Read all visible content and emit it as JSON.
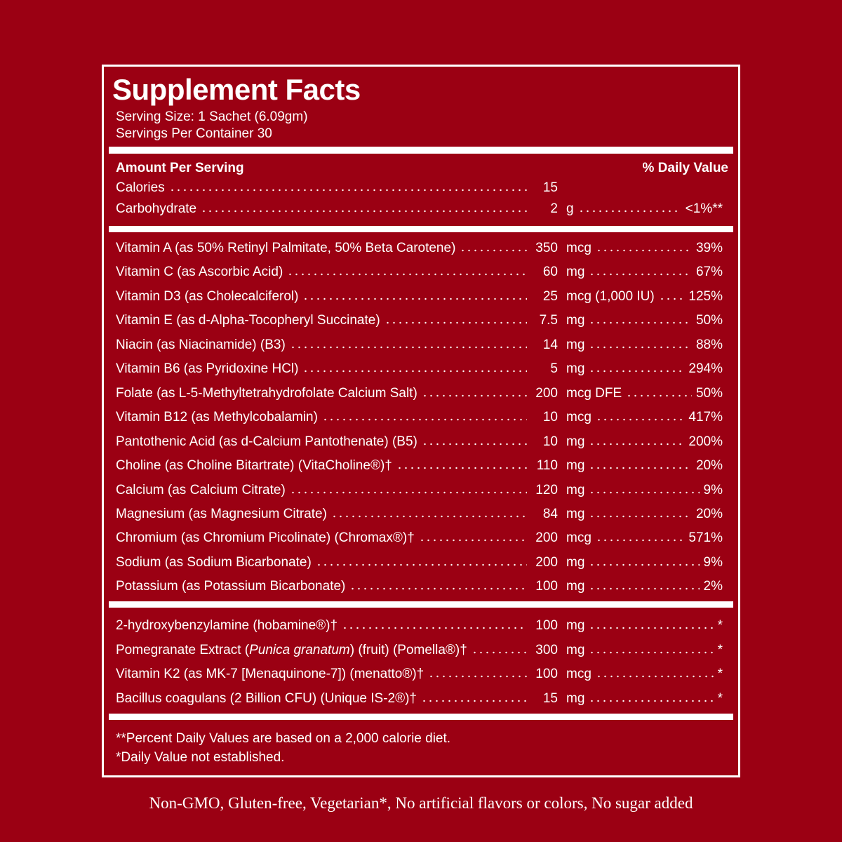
{
  "header": {
    "title": "Supplement Facts",
    "serving_size": "Serving Size: 1 Sachet (6.09gm)",
    "servings_per_container": "Servings Per Container 30"
  },
  "columns": {
    "amount": "Amount Per Serving",
    "daily_value": "% Daily Value"
  },
  "sections": [
    {
      "rows": [
        {
          "name": "Calories",
          "amount": 15
        },
        {
          "name": "Carbohydrate",
          "amount": 2,
          "unit": "g",
          "dv": "<1%**"
        }
      ]
    },
    {
      "rows": [
        {
          "name": "Vitamin A (as 50% Retinyl Palmitate, 50% Beta Carotene)",
          "amount": 350,
          "unit": "mcg",
          "dv": "39%"
        },
        {
          "name": "Vitamin C (as Ascorbic Acid)",
          "amount": 60,
          "unit": "mg",
          "dv": "67%"
        },
        {
          "name": "Vitamin D3 (as Cholecalciferol)",
          "amount": 25,
          "unit": "mcg (1,000 IU)",
          "dv": "125%"
        },
        {
          "name": "Vitamin E (as d-Alpha-Tocopheryl Succinate)",
          "amount": 7.5,
          "unit": "mg",
          "dv": "50%"
        },
        {
          "name": "Niacin (as Niacinamide) (B3)",
          "amount": 14,
          "unit": "mg",
          "dv": "88%"
        },
        {
          "name": "Vitamin B6 (as Pyridoxine HCl)",
          "amount": 5,
          "unit": "mg",
          "dv": "294%"
        },
        {
          "name": "Folate (as L-5-Methyltetrahydrofolate Calcium Salt)",
          "amount": 200,
          "unit": "mcg DFE",
          "dv": "50%"
        },
        {
          "name": "Vitamin B12 (as Methylcobalamin)",
          "amount": 10,
          "unit": "mcg",
          "dv": "417%"
        },
        {
          "name": "Pantothenic Acid (as d-Calcium Pantothenate) (B5)",
          "amount": 10,
          "unit": "mg",
          "dv": "200%"
        },
        {
          "name": "Choline (as Choline Bitartrate) (VitaCholine®)†",
          "amount": 110,
          "unit": "mg",
          "dv": "20%"
        },
        {
          "name": "Calcium (as Calcium Citrate)",
          "amount": 120,
          "unit": "mg",
          "dv": "9%"
        },
        {
          "name": "Magnesium (as Magnesium Citrate)",
          "amount": 84,
          "unit": "mg",
          "dv": "20%"
        },
        {
          "name": "Chromium (as Chromium Picolinate) (Chromax®)†",
          "amount": 200,
          "unit": "mcg",
          "dv": "571%"
        },
        {
          "name": "Sodium (as Sodium Bicarbonate)",
          "amount": 200,
          "unit": "mg",
          "dv": "9%"
        },
        {
          "name": "Potassium (as Potassium Bicarbonate)",
          "amount": 100,
          "unit": "mg",
          "dv": "2%"
        }
      ]
    },
    {
      "rows": [
        {
          "name": "2-hydroxybenzylamine (hobamine®)†",
          "amount": 100,
          "unit": "mg",
          "dv": "*"
        },
        {
          "name_parts": [
            "Pomegranate Extract (",
            "Punica granatum",
            ") (fruit) (Pomella®)†"
          ],
          "amount": 300,
          "unit": "mg",
          "dv": "*"
        },
        {
          "name": "Vitamin K2 (as MK-7 [Menaquinone-7]) (menatto®)†",
          "amount": 100,
          "unit": "mcg",
          "dv": "*"
        },
        {
          "name": "Bacillus coagulans (2 Billion CFU) (Unique IS-2®)†",
          "amount": 15,
          "unit": "mg",
          "dv": "*"
        }
      ]
    }
  ],
  "footnotes": [
    "**Percent Daily Values are based on a 2,000 calorie diet.",
    "*Daily Value not established."
  ],
  "tagline": "Non-GMO, Gluten-free, Vegetarian*, No artificial flavors or colors, No sugar added"
}
